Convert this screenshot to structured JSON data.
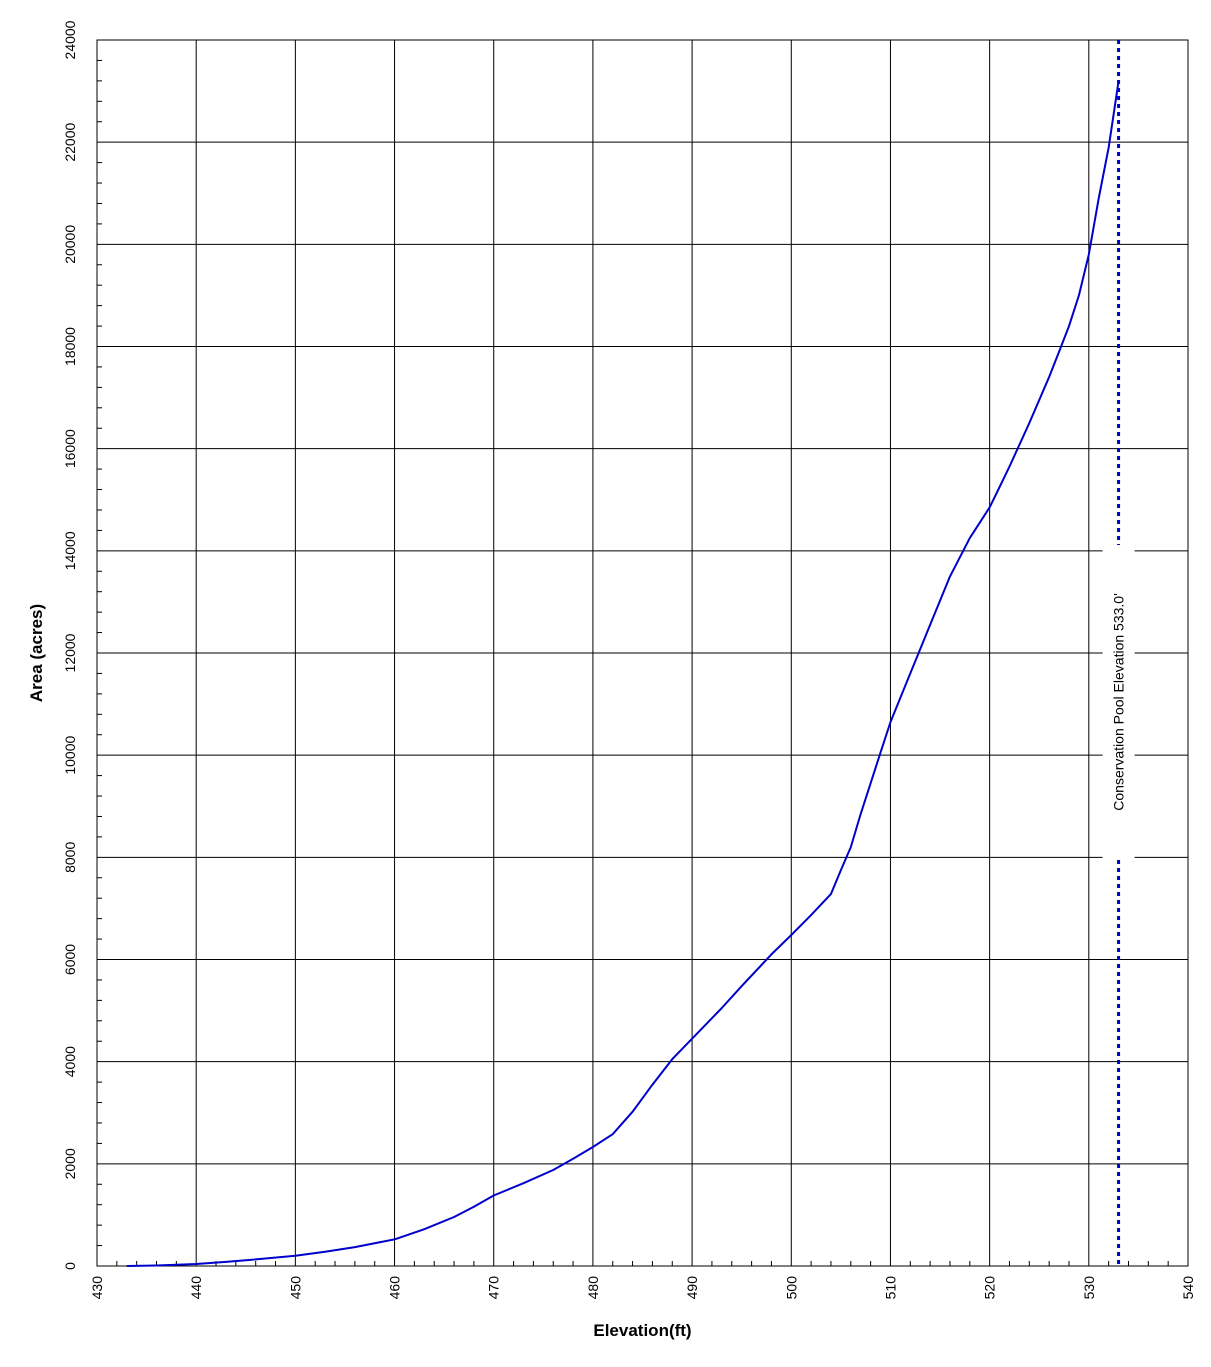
{
  "chart_data": {
    "type": "line",
    "title": "",
    "xlabel": "Elevation(ft)",
    "ylabel": "Area (acres)",
    "xlim": [
      430,
      540
    ],
    "ylim": [
      0,
      24000
    ],
    "x_ticks": [
      430,
      440,
      450,
      460,
      470,
      480,
      490,
      500,
      510,
      520,
      530,
      540
    ],
    "y_ticks": [
      0,
      2000,
      4000,
      6000,
      8000,
      10000,
      12000,
      14000,
      16000,
      18000,
      20000,
      22000,
      24000
    ],
    "x_tick_labels": [
      "430",
      "440",
      "450",
      "460",
      "470",
      "480",
      "490",
      "500",
      "510",
      "520",
      "530",
      "540"
    ],
    "y_tick_labels": [
      "0",
      "2000",
      "4000",
      "6000",
      "8000",
      "10000",
      "12000",
      "14000",
      "16000",
      "18000",
      "20000",
      "22000",
      "24000"
    ],
    "grid": true,
    "colors": {
      "series": "#0000cc",
      "marker_line": "#0000cc",
      "grid": "#000000"
    },
    "series": [
      {
        "x": [
          433,
          436,
          440,
          443,
          446,
          450,
          453,
          456,
          460,
          463,
          466,
          468,
          470,
          473,
          476,
          478,
          480,
          482,
          484,
          486,
          488,
          490,
          493,
          495,
          498,
          500,
          502,
          504,
          505,
          506,
          507,
          508,
          509,
          510,
          512,
          514,
          516,
          518,
          520,
          521,
          522,
          524,
          526,
          527,
          528,
          529,
          530,
          531,
          532,
          533
        ],
        "y": [
          0,
          10,
          40,
          80,
          130,
          200,
          280,
          370,
          520,
          720,
          960,
          1160,
          1380,
          1620,
          1880,
          2100,
          2330,
          2580,
          3020,
          3550,
          4050,
          4450,
          5050,
          5480,
          6100,
          6480,
          6870,
          7280,
          7750,
          8200,
          8850,
          9450,
          10050,
          10650,
          11600,
          12550,
          13500,
          14250,
          14850,
          15250,
          15650,
          16500,
          17400,
          17900,
          18400,
          19000,
          19800,
          20900,
          21900,
          23200
        ]
      }
    ],
    "annotations": [
      {
        "type": "vline",
        "x": 533,
        "style": "dotted",
        "text": "Conservation Pool Elevation 533.0'"
      }
    ]
  }
}
